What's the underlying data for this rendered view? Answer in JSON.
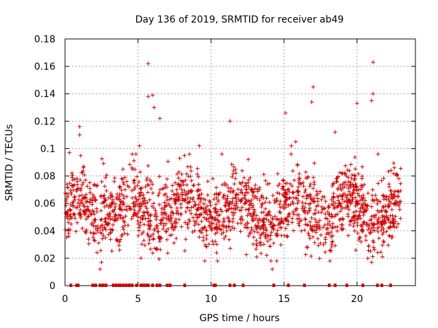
{
  "chart_data": {
    "type": "scatter",
    "title": "Day 136 of 2019, SRMTID for receiver ab49",
    "xlabel": "GPS time / hours",
    "ylabel": "SRMTID / TECUs",
    "xlim": [
      0,
      24
    ],
    "ylim": [
      0,
      0.18
    ],
    "x_ticks": [
      0,
      5,
      10,
      15,
      20
    ],
    "x_tick_labels": [
      "0",
      "5",
      "10",
      "15",
      "20"
    ],
    "y_ticks": [
      0,
      0.02,
      0.04,
      0.06,
      0.08,
      0.1,
      0.12,
      0.14,
      0.16,
      0.18
    ],
    "y_tick_labels": [
      "0",
      "0.02",
      "0.04",
      "0.06",
      "0.08",
      "0.1",
      "0.12",
      "0.14",
      "0.16",
      "0.18"
    ],
    "grid": true,
    "marker": "+",
    "color": "#cc0000",
    "density_profile": {
      "x_start": 0.0,
      "x_end": 23.0,
      "n_points": 1800,
      "typical_range": [
        0.02,
        0.09
      ],
      "median_approx": 0.055
    },
    "notable_points": [
      {
        "x": 5.7,
        "y": 0.162
      },
      {
        "x": 21.1,
        "y": 0.163
      },
      {
        "x": 17.0,
        "y": 0.145
      },
      {
        "x": 21.1,
        "y": 0.14
      },
      {
        "x": 5.7,
        "y": 0.138
      },
      {
        "x": 6.0,
        "y": 0.139
      },
      {
        "x": 16.9,
        "y": 0.134
      },
      {
        "x": 20.0,
        "y": 0.133
      },
      {
        "x": 21.0,
        "y": 0.135
      },
      {
        "x": 15.1,
        "y": 0.126
      },
      {
        "x": 11.3,
        "y": 0.12
      },
      {
        "x": 1.0,
        "y": 0.116
      },
      {
        "x": 1.0,
        "y": 0.11
      },
      {
        "x": 18.5,
        "y": 0.112
      },
      {
        "x": 6.5,
        "y": 0.122
      },
      {
        "x": 6.1,
        "y": 0.13
      },
      {
        "x": 0.3,
        "y": 0.097
      },
      {
        "x": 5.1,
        "y": 0.102
      },
      {
        "x": 9.2,
        "y": 0.102
      },
      {
        "x": 15.5,
        "y": 0.102
      },
      {
        "x": 15.8,
        "y": 0.105
      },
      {
        "x": 14.2,
        "y": 0.012
      },
      {
        "x": 2.4,
        "y": 0.012
      },
      {
        "x": 2.5,
        "y": 0.017
      },
      {
        "x": 21.0,
        "y": 0.017
      },
      {
        "x": 5.2,
        "y": 0.02
      },
      {
        "x": 14.5,
        "y": 0.018
      }
    ],
    "zero_points_x": [
      0.4,
      0.8,
      0.9,
      1.9,
      2.1,
      2.4,
      2.6,
      2.8,
      3.3,
      3.5,
      3.7,
      3.8,
      4.0,
      4.2,
      4.4,
      4.6,
      4.9,
      5.2,
      5.4,
      5.6,
      5.7,
      6.0,
      6.3,
      6.5,
      7.0,
      7.2,
      8.2,
      10.2,
      10.3,
      11.3,
      11.6,
      12.2,
      14.3,
      15.3,
      16.4,
      18.1,
      18.5,
      19.3,
      20.4,
      21.4,
      21.7,
      22.3
    ]
  }
}
